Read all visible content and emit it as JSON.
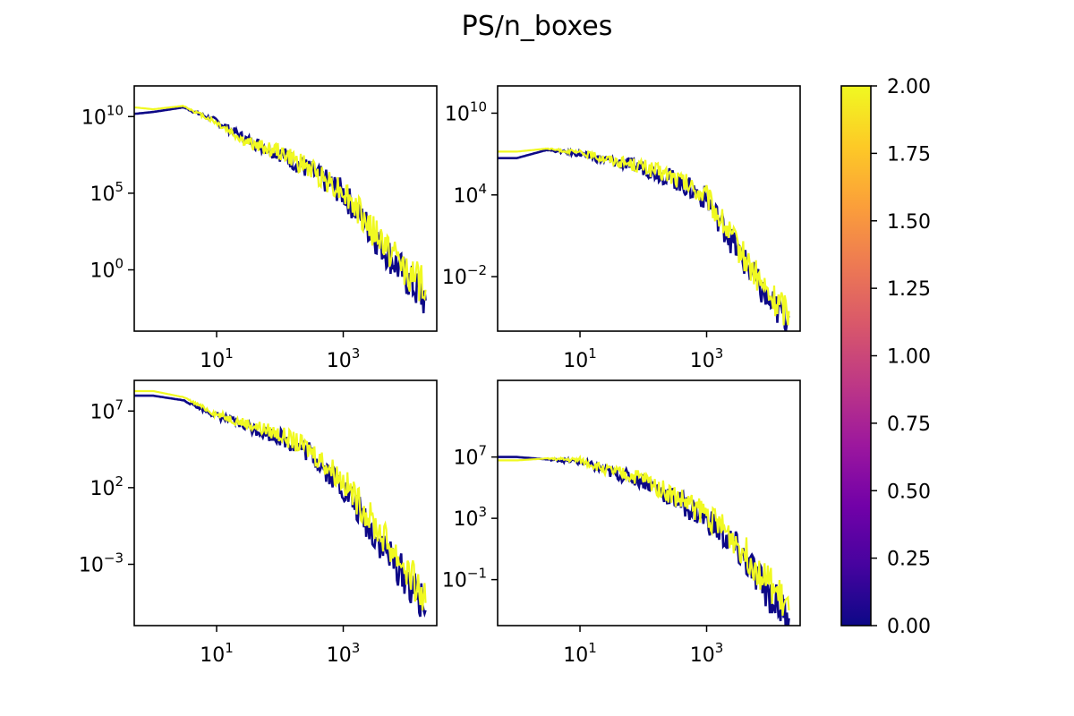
{
  "figure": {
    "title": "PS/n_boxes"
  },
  "colorbar": {
    "colormap": "plasma",
    "range": [
      0.0,
      2.0
    ],
    "ticks": [
      "0.00",
      "0.25",
      "0.50",
      "0.75",
      "1.00",
      "1.25",
      "1.50",
      "1.75",
      "2.00"
    ],
    "tick_values": [
      0,
      0.25,
      0.5,
      0.75,
      1.0,
      1.25,
      1.5,
      1.75,
      2.0
    ],
    "stops": [
      "#0d0887",
      "#46039f",
      "#7201a8",
      "#9c179e",
      "#bd3786",
      "#d8576b",
      "#ed7953",
      "#fb9f3a",
      "#fdca26",
      "#f0f921"
    ]
  },
  "chart_data": [
    {
      "type": "line",
      "xscale": "log",
      "yscale": "log",
      "xlim": [
        0.5,
        30000
      ],
      "ylim": [
        0.0001,
        1000000000000.0
      ],
      "xticks": [
        {
          "value": 10,
          "base": "10",
          "exp": "1"
        },
        {
          "value": 1000,
          "base": "10",
          "exp": "3"
        }
      ],
      "yticks": [
        {
          "value": 1,
          "base": "10",
          "exp": "0"
        },
        {
          "value": 100000,
          "base": "10",
          "exp": "5"
        },
        {
          "value": 10000000000.0,
          "base": "10",
          "exp": "10"
        }
      ],
      "series": [
        {
          "color": "#0d0887",
          "x": [
            0.5,
            1,
            3,
            10,
            30,
            100,
            300,
            1000,
            3000,
            10000,
            20000
          ],
          "y": [
            15000000000.0,
            20000000000.0,
            40000000000.0,
            5000000000.0,
            300000000.0,
            40000000.0,
            3000000.0,
            100000.0,
            200.0,
            0.3,
            0.01
          ]
        },
        {
          "color": "#f0f921",
          "x": [
            0.5,
            1,
            3,
            10,
            30,
            100,
            300,
            1000,
            3000,
            10000,
            20000
          ],
          "y": [
            40000000000.0,
            30000000000.0,
            50000000000.0,
            4000000000.0,
            200000000.0,
            50000000.0,
            4000000.0,
            150000.0,
            300.0,
            1,
            0.05
          ]
        }
      ]
    },
    {
      "type": "line",
      "xscale": "log",
      "yscale": "log",
      "xlim": [
        0.5,
        30000
      ],
      "ylim": [
        1e-06,
        1000000000000.0
      ],
      "xticks": [
        {
          "value": 10,
          "base": "10",
          "exp": "1"
        },
        {
          "value": 1000,
          "base": "10",
          "exp": "3"
        }
      ],
      "yticks": [
        {
          "value": 0.01,
          "base": "10",
          "exp": "−2"
        },
        {
          "value": 10000,
          "base": "10",
          "exp": "4"
        },
        {
          "value": 10000000000.0,
          "base": "10",
          "exp": "10"
        }
      ],
      "series": [
        {
          "color": "#0d0887",
          "x": [
            0.5,
            1,
            3,
            10,
            30,
            100,
            300,
            1000,
            3000,
            10000,
            20000
          ],
          "y": [
            5000000.0,
            5000000.0,
            20000000.0,
            10000000.0,
            3000000.0,
            1000000.0,
            150000.0,
            5000.0,
            1,
            0.0001,
            1e-05
          ]
        },
        {
          "color": "#f0f921",
          "x": [
            0.5,
            1,
            3,
            10,
            30,
            100,
            300,
            1000,
            3000,
            10000,
            20000
          ],
          "y": [
            15000000.0,
            15000000.0,
            25000000.0,
            12000000.0,
            4000000.0,
            1200000.0,
            200000.0,
            7000.0,
            2,
            0.0003,
            3e-05
          ]
        }
      ]
    },
    {
      "type": "line",
      "xscale": "log",
      "yscale": "log",
      "xlim": [
        0.5,
        30000
      ],
      "ylim": [
        1e-07,
        1000000000.0
      ],
      "xticks": [
        {
          "value": 10,
          "base": "10",
          "exp": "1"
        },
        {
          "value": 1000,
          "base": "10",
          "exp": "3"
        }
      ],
      "yticks": [
        {
          "value": 0.001,
          "base": "10",
          "exp": "−3"
        },
        {
          "value": 100,
          "base": "10",
          "exp": "2"
        },
        {
          "value": 10000000.0,
          "base": "10",
          "exp": "7"
        }
      ],
      "series": [
        {
          "color": "#0d0887",
          "x": [
            0.5,
            1,
            3,
            10,
            30,
            100,
            300,
            1000,
            3000,
            10000,
            20000
          ],
          "y": [
            100000000.0,
            100000000.0,
            50000000.0,
            5000000.0,
            1000000.0,
            200000.0,
            20000.0,
            100.0,
            0.1,
            0.0001,
            1e-06
          ]
        },
        {
          "color": "#f0f921",
          "x": [
            0.5,
            1,
            3,
            10,
            30,
            100,
            300,
            1000,
            3000,
            10000,
            20000
          ],
          "y": [
            200000000.0,
            200000000.0,
            80000000.0,
            6000000.0,
            1500000.0,
            300000.0,
            30000.0,
            300.0,
            0.5,
            0.0005,
            3e-06
          ]
        }
      ]
    },
    {
      "type": "line",
      "xscale": "log",
      "yscale": "log",
      "xlim": [
        0.5,
        30000
      ],
      "ylim": [
        0.0001,
        1000000000000.0
      ],
      "xticks": [
        {
          "value": 10,
          "base": "10",
          "exp": "1"
        },
        {
          "value": 1000,
          "base": "10",
          "exp": "3"
        }
      ],
      "yticks": [
        {
          "value": 0.1,
          "base": "10",
          "exp": "−1"
        },
        {
          "value": 1000,
          "base": "10",
          "exp": "3"
        },
        {
          "value": 10000000.0,
          "base": "10",
          "exp": "7"
        }
      ],
      "series": [
        {
          "color": "#0d0887",
          "x": [
            0.5,
            1,
            3,
            10,
            30,
            100,
            300,
            1000,
            3000,
            10000,
            20000
          ],
          "y": [
            10000000.0,
            10000000.0,
            7000000.0,
            5000000.0,
            1000000.0,
            300000.0,
            20000.0,
            1000.0,
            10,
            0.01,
            0.0003
          ]
        },
        {
          "color": "#f0f921",
          "x": [
            0.5,
            1,
            3,
            10,
            30,
            100,
            300,
            1000,
            3000,
            10000,
            20000
          ],
          "y": [
            6000000.0,
            6000000.0,
            8000000.0,
            6000000.0,
            1200000.0,
            400000.0,
            30000.0,
            2000.0,
            30,
            0.05,
            0.001
          ]
        }
      ]
    }
  ]
}
